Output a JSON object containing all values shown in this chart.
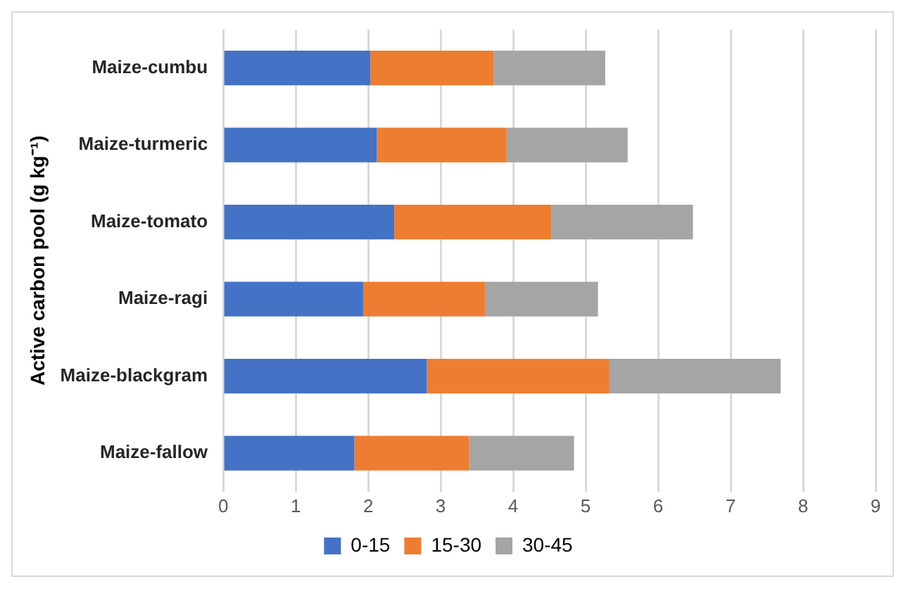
{
  "chart_data": {
    "type": "bar",
    "orientation": "horizontal",
    "stacked": true,
    "ylabel": "Active carbon pool (g kg⁻¹)",
    "categories": [
      "Maize-cumbu",
      "Maize-turmeric",
      "Maize-tomato",
      "Maize-ragi",
      "Maize-blackgram",
      "Maize-fallow"
    ],
    "series": [
      {
        "name": "0-15",
        "color": "#4472c4",
        "values": [
          2.03,
          2.12,
          2.36,
          1.93,
          2.81,
          1.81
        ]
      },
      {
        "name": "15-30",
        "color": "#ed7d31",
        "values": [
          1.7,
          1.79,
          2.17,
          1.68,
          2.51,
          1.58
        ]
      },
      {
        "name": "30-45",
        "color": "#a5a5a5",
        "values": [
          1.54,
          1.67,
          1.95,
          1.56,
          2.37,
          1.45
        ]
      }
    ],
    "xlim": [
      0,
      9
    ],
    "xticks": [
      0,
      1,
      2,
      3,
      4,
      5,
      6,
      7,
      8,
      9
    ],
    "grid": "x",
    "legend": "bottom"
  }
}
